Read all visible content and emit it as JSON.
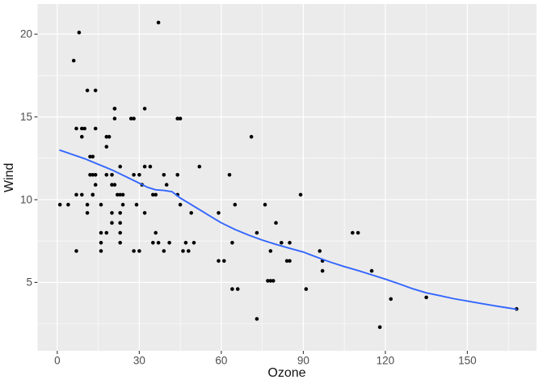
{
  "chart_data": {
    "type": "scatter",
    "title": "",
    "xlabel": "Ozone",
    "ylabel": "Wind",
    "xlim": [
      -7.2,
      175.3
    ],
    "ylim": [
      0.87,
      21.82
    ],
    "x_major_ticks": [
      0,
      30,
      60,
      90,
      120,
      150
    ],
    "x_minor_ticks": [
      15,
      45,
      75,
      105,
      135,
      165
    ],
    "y_major_ticks": [
      5,
      10,
      15,
      20
    ],
    "y_minor_ticks": [
      2.5,
      7.5,
      12.5,
      17.5
    ],
    "grid": true,
    "legend": "none",
    "colors": {
      "panel_bg": "#EBEBEB",
      "grid": "#FFFFFF",
      "point": "#000000",
      "smooth_line": "#3366FF",
      "axis_text": "#4D4D4D",
      "axis_title": "#111111",
      "tick_mark": "#333333",
      "figure_bg": "#FFFFFF"
    },
    "points": [
      [
        41,
        7.4
      ],
      [
        36,
        8
      ],
      [
        12,
        12.6
      ],
      [
        18,
        11.5
      ],
      [
        28,
        14.9
      ],
      [
        23,
        8.6
      ],
      [
        19,
        13.8
      ],
      [
        8,
        20.1
      ],
      [
        7,
        6.9
      ],
      [
        16,
        9.7
      ],
      [
        11,
        9.2
      ],
      [
        14,
        10.9
      ],
      [
        18,
        13.2
      ],
      [
        14,
        11.5
      ],
      [
        34,
        12
      ],
      [
        6,
        18.4
      ],
      [
        30,
        11.5
      ],
      [
        11,
        9.7
      ],
      [
        1,
        9.7
      ],
      [
        11,
        16.6
      ],
      [
        4,
        9.7
      ],
      [
        32,
        12
      ],
      [
        23,
        12
      ],
      [
        45,
        14.9
      ],
      [
        115,
        5.7
      ],
      [
        37,
        7.4
      ],
      [
        29,
        9.7
      ],
      [
        71,
        13.8
      ],
      [
        39,
        11.5
      ],
      [
        23,
        8
      ],
      [
        21,
        14.9
      ],
      [
        37,
        20.7
      ],
      [
        20,
        9.2
      ],
      [
        12,
        11.5
      ],
      [
        13,
        10.3
      ],
      [
        135,
        4.1
      ],
      [
        49,
        9.2
      ],
      [
        32,
        9.2
      ],
      [
        64,
        4.6
      ],
      [
        40,
        10.9
      ],
      [
        77,
        5.1
      ],
      [
        97,
        6.3
      ],
      [
        97,
        5.7
      ],
      [
        85,
        7.4
      ],
      [
        10,
        14.3
      ],
      [
        27,
        14.9
      ],
      [
        7,
        14.3
      ],
      [
        48,
        6.9
      ],
      [
        35,
        10.3
      ],
      [
        61,
        6.3
      ],
      [
        79,
        5.1
      ],
      [
        63,
        11.5
      ],
      [
        16,
        6.9
      ],
      [
        80,
        8.6
      ],
      [
        108,
        8
      ],
      [
        20,
        8.6
      ],
      [
        52,
        12
      ],
      [
        82,
        7.4
      ],
      [
        50,
        7.4
      ],
      [
        64,
        7.4
      ],
      [
        59,
        9.2
      ],
      [
        39,
        6.9
      ],
      [
        9,
        13.8
      ],
      [
        16,
        7.4
      ],
      [
        78,
        6.9
      ],
      [
        35,
        7.4
      ],
      [
        66,
        4.6
      ],
      [
        122,
        4
      ],
      [
        89,
        10.3
      ],
      [
        110,
        8
      ],
      [
        44,
        11.5
      ],
      [
        28,
        11.5
      ],
      [
        65,
        9.7
      ],
      [
        22,
        10.3
      ],
      [
        59,
        6.3
      ],
      [
        23,
        7.4
      ],
      [
        31,
        10.9
      ],
      [
        44,
        10.3
      ],
      [
        21,
        15.5
      ],
      [
        9,
        14.3
      ],
      [
        45,
        9.7
      ],
      [
        168,
        3.4
      ],
      [
        73,
        8
      ],
      [
        76,
        9.7
      ],
      [
        118,
        2.3
      ],
      [
        84,
        6.3
      ],
      [
        85,
        6.3
      ],
      [
        96,
        6.9
      ],
      [
        78,
        5.1
      ],
      [
        73,
        2.8
      ],
      [
        91,
        4.6
      ],
      [
        47,
        7.4
      ],
      [
        32,
        15.5
      ],
      [
        20,
        10.9
      ],
      [
        23,
        10.3
      ],
      [
        21,
        10.9
      ],
      [
        24,
        9.7
      ],
      [
        44,
        14.9
      ],
      [
        21,
        15.5
      ],
      [
        28,
        6.9
      ],
      [
        9,
        10.3
      ],
      [
        13,
        11.5
      ],
      [
        46,
        6.9
      ],
      [
        18,
        13.8
      ],
      [
        13,
        10.3
      ],
      [
        24,
        10.3
      ],
      [
        16,
        8
      ],
      [
        13,
        12.6
      ],
      [
        23,
        9.2
      ],
      [
        36,
        10.3
      ],
      [
        7,
        10.3
      ],
      [
        14,
        16.6
      ],
      [
        30,
        6.9
      ],
      [
        14,
        14.3
      ],
      [
        18,
        8
      ],
      [
        20,
        11.5
      ]
    ],
    "smooth_line": [
      [
        1,
        12.99
      ],
      [
        5,
        12.76
      ],
      [
        10,
        12.48
      ],
      [
        15,
        12.14
      ],
      [
        20,
        11.8
      ],
      [
        25,
        11.4
      ],
      [
        30,
        11.0
      ],
      [
        33,
        10.75
      ],
      [
        36,
        10.6
      ],
      [
        39,
        10.56
      ],
      [
        42,
        10.48
      ],
      [
        45,
        10.1
      ],
      [
        48,
        9.8
      ],
      [
        50,
        9.6
      ],
      [
        55,
        9.1
      ],
      [
        60,
        8.6
      ],
      [
        65,
        8.2
      ],
      [
        70,
        7.86
      ],
      [
        75,
        7.56
      ],
      [
        80,
        7.3
      ],
      [
        85,
        7.06
      ],
      [
        90,
        6.84
      ],
      [
        95,
        6.52
      ],
      [
        100,
        6.22
      ],
      [
        105,
        5.96
      ],
      [
        110,
        5.72
      ],
      [
        115,
        5.46
      ],
      [
        120,
        5.2
      ],
      [
        125,
        4.92
      ],
      [
        130,
        4.62
      ],
      [
        135,
        4.37
      ],
      [
        140,
        4.2
      ],
      [
        145,
        4.02
      ],
      [
        150,
        3.88
      ],
      [
        155,
        3.73
      ],
      [
        160,
        3.59
      ],
      [
        165,
        3.46
      ],
      [
        168,
        3.38
      ]
    ]
  }
}
